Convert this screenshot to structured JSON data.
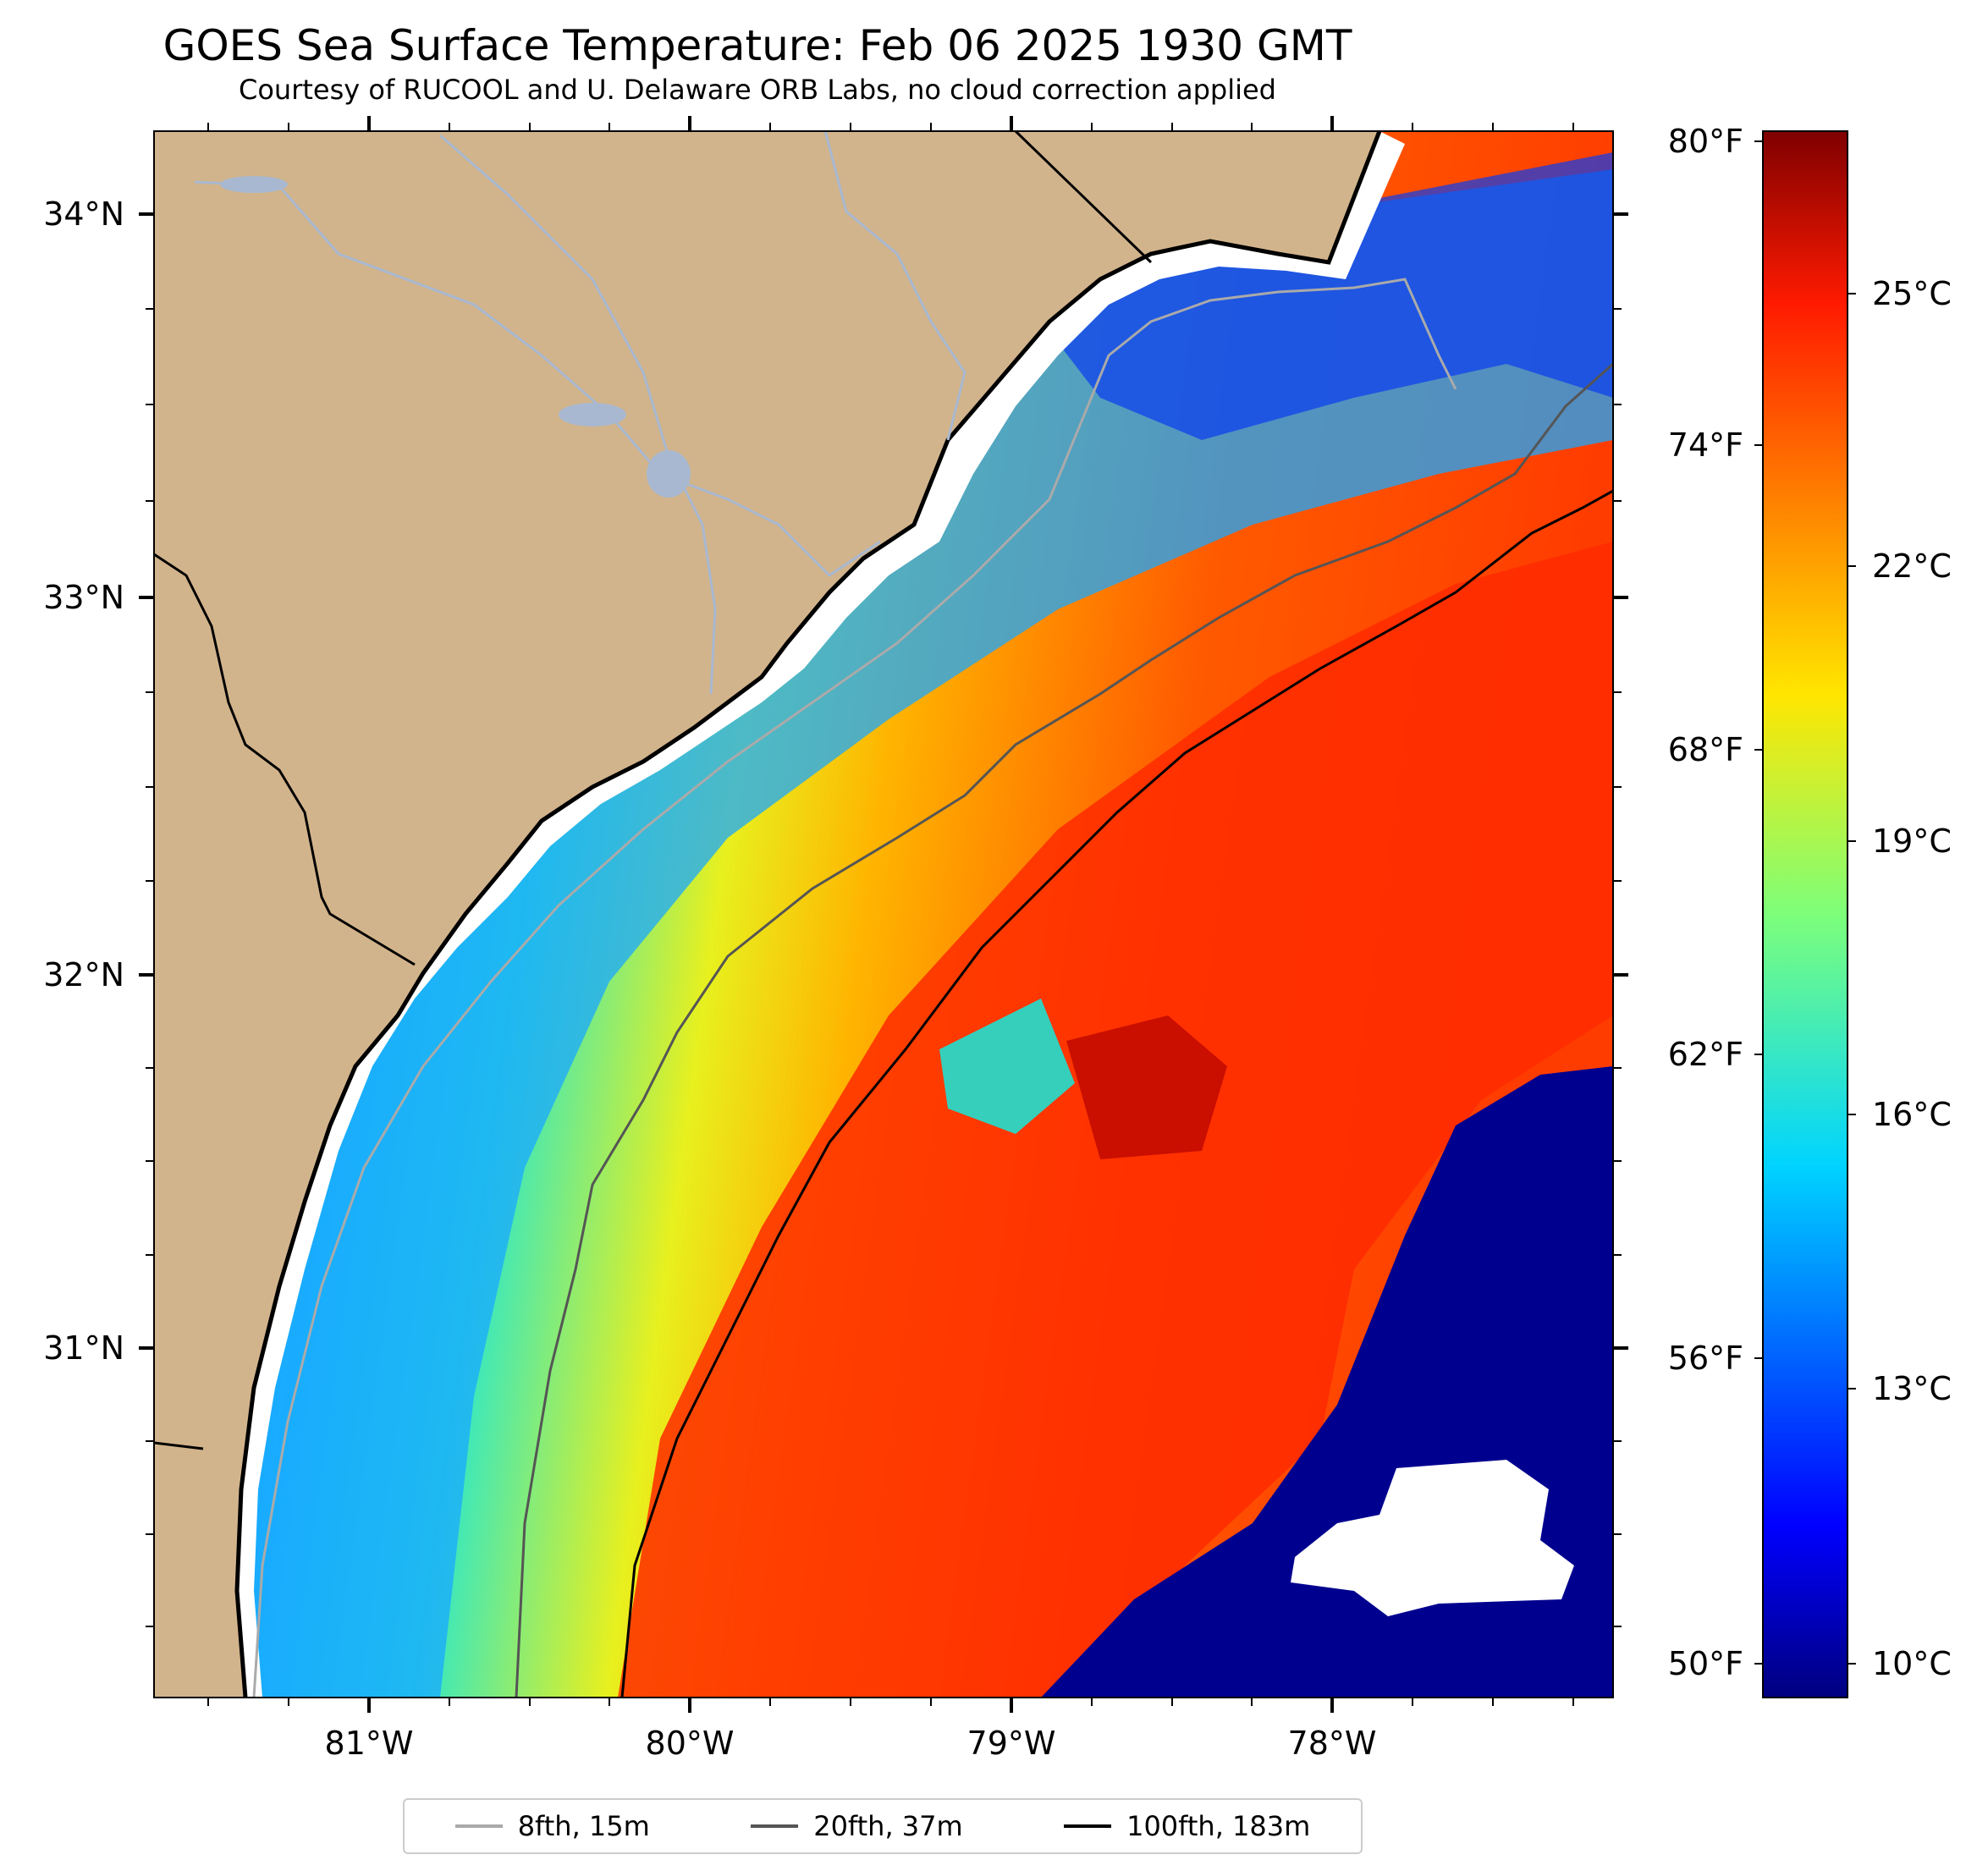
{
  "header": {
    "title": "GOES Sea Surface Temperature: Feb 06 2025 1930 GMT",
    "subtitle": "Courtesy of RUCOOL and U. Delaware ORB Labs, no cloud correction applied"
  },
  "map": {
    "lon_range": [
      -81.67,
      -77.1
    ],
    "lat_range": [
      30.12,
      34.22
    ],
    "lon_ticks": [
      "81°W",
      "80°W",
      "79°W",
      "78°W"
    ],
    "lat_ticks": [
      "34°N",
      "33°N",
      "32°N",
      "31°N"
    ],
    "colors": {
      "land": "#d2b48c",
      "river": "#a8b8d0",
      "coastline": "#000000",
      "no_data": "#ffffff"
    }
  },
  "colorbar": {
    "colormap": "jet",
    "range_c": [
      9.5,
      27.0
    ],
    "celsius_ticks": [
      "25°C",
      "22°C",
      "19°C",
      "16°C",
      "13°C",
      "10°C"
    ],
    "fahrenheit_ticks": [
      "80°F",
      "74°F",
      "68°F",
      "62°F",
      "56°F",
      "50°F"
    ]
  },
  "legend": {
    "items": [
      {
        "label": "8fth, 15m",
        "color": "#aaaaaa"
      },
      {
        "label": "20fth, 37m",
        "color": "#555555"
      },
      {
        "label": "100fth, 183m",
        "color": "#000000"
      }
    ]
  }
}
